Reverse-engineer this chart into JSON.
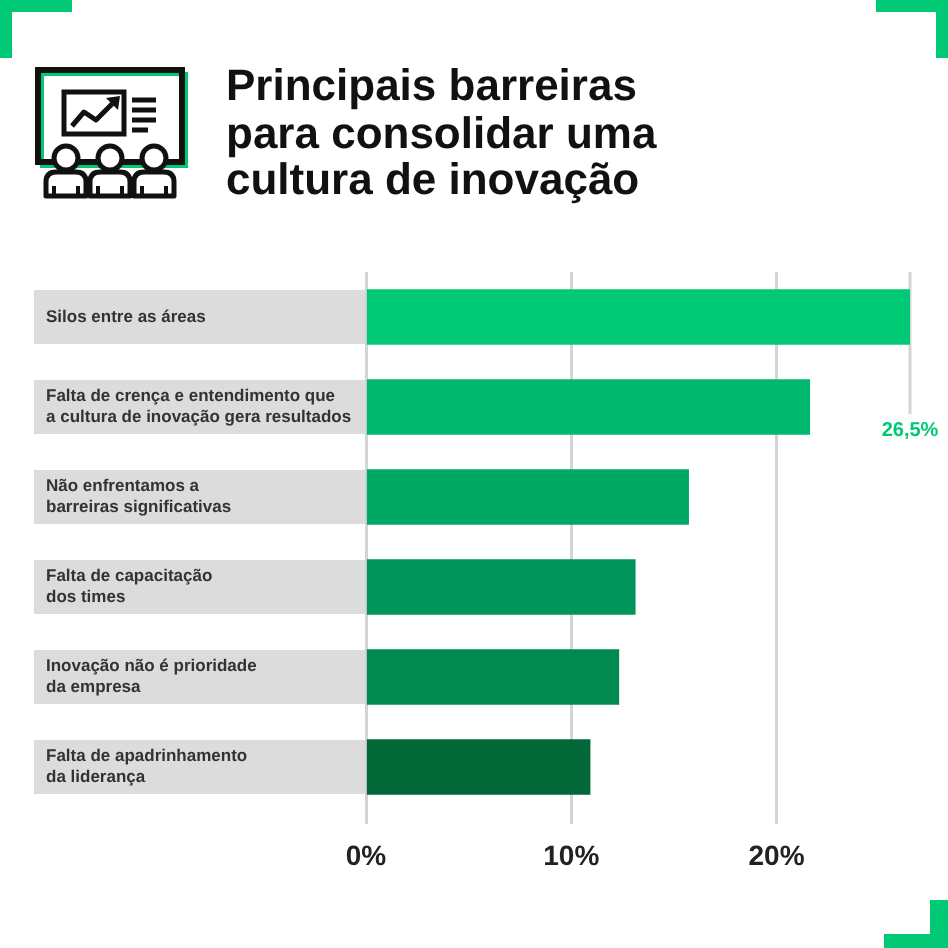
{
  "chart_data": {
    "type": "bar",
    "orientation": "horizontal",
    "title": "Principais barreiras para consolidar uma cultura de inovação",
    "categories": [
      "Silos entre as áreas",
      "Falta de crença e entendimento que\na cultura de inovação gera resultados",
      "Não enfrentamos a\nbarreiras significativas",
      "Falta de capacitação\ndos times",
      "Inovação não é prioridade\nda empresa",
      "Falta de apadrinhamento\nda liderança"
    ],
    "values": [
      26.5,
      21.6,
      15.7,
      13.1,
      12.3,
      10.9
    ],
    "colors": [
      "#00c875",
      "#00b870",
      "#00a866",
      "#00955a",
      "#008a52",
      "#026838"
    ],
    "xlim": [
      0,
      26.5
    ],
    "xticks": [
      {
        "value": 0,
        "label": "0%"
      },
      {
        "value": 10,
        "label": "10%"
      },
      {
        "value": 20,
        "label": "20%"
      }
    ],
    "grid": "x",
    "ref_lines": [
      {
        "axis": "x",
        "value": 26.5,
        "label": "26,5%",
        "color": "#d4d4d4"
      }
    ]
  }
}
